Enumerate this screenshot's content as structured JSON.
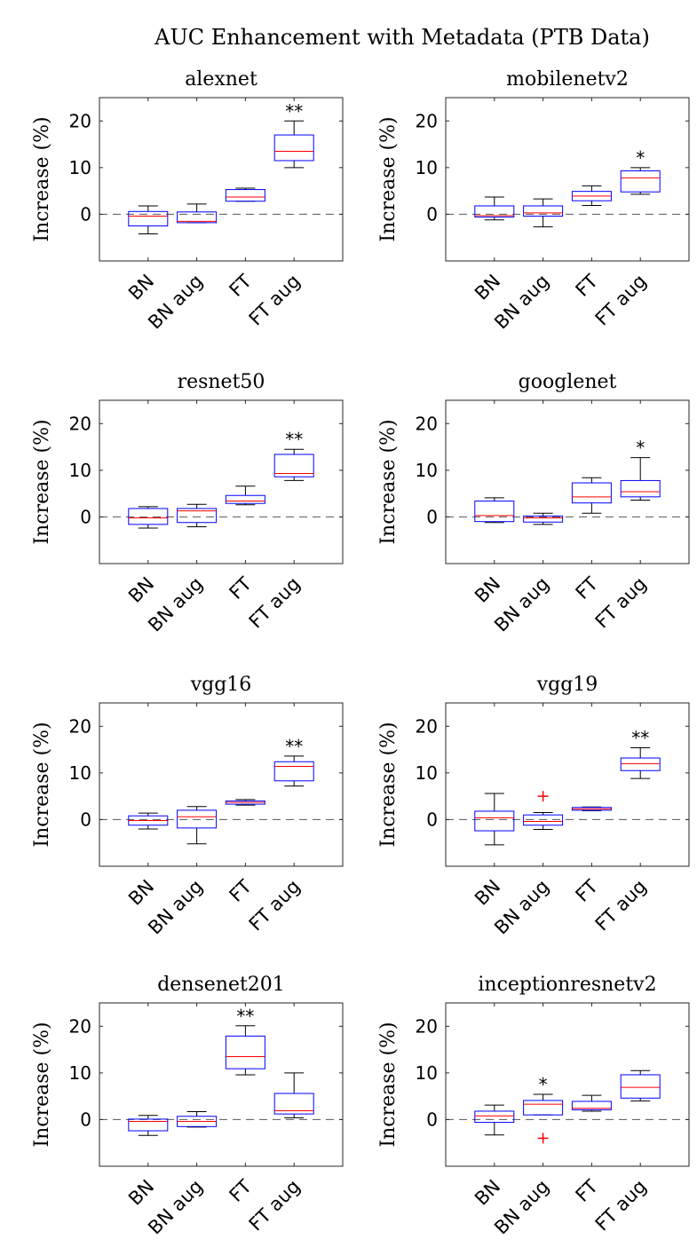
{
  "title": "AUC Enhancement with Metadata (PTB Data)",
  "colors": {
    "box": "#0000ff",
    "median": "#ff0000",
    "whisker": "#000000",
    "outlier": "#ff0000",
    "zero_line": "#555555"
  },
  "chart_data": [
    {
      "type": "box",
      "title": "alexnet",
      "ylabel": "Increase (%)",
      "ylim": [
        -10,
        25
      ],
      "yticks": [
        0,
        10,
        20
      ],
      "categories": [
        "BN",
        "BN aug",
        "FT",
        "FT aug"
      ],
      "boxes": [
        {
          "min": -4.2,
          "q1": -2.5,
          "median": -0.4,
          "q3": 0.6,
          "max": 1.8,
          "outliers": []
        },
        {
          "min": -1.8,
          "q1": -1.8,
          "median": -1.5,
          "q3": 0.5,
          "max": 2.2,
          "outliers": []
        },
        {
          "min": 2.8,
          "q1": 2.8,
          "median": 3.7,
          "q3": 5.3,
          "max": 5.6,
          "outliers": []
        },
        {
          "min": 10.0,
          "q1": 11.5,
          "median": 13.5,
          "q3": 17.0,
          "max": 20.0,
          "outliers": []
        }
      ],
      "significance": [
        "",
        "",
        "",
        "**"
      ]
    },
    {
      "type": "box",
      "title": "mobilenetv2",
      "ylabel": "Increase (%)",
      "ylim": [
        -10,
        25
      ],
      "yticks": [
        0,
        10,
        20
      ],
      "categories": [
        "BN",
        "BN aug",
        "FT",
        "FT aug"
      ],
      "boxes": [
        {
          "min": -1.2,
          "q1": -0.6,
          "median": -0.3,
          "q3": 1.8,
          "max": 3.7,
          "outliers": []
        },
        {
          "min": -2.7,
          "q1": -0.4,
          "median": 0.3,
          "q3": 1.8,
          "max": 3.3,
          "outliers": []
        },
        {
          "min": 1.9,
          "q1": 2.9,
          "median": 3.9,
          "q3": 4.9,
          "max": 6.1,
          "outliers": []
        },
        {
          "min": 4.3,
          "q1": 4.8,
          "median": 7.8,
          "q3": 9.3,
          "max": 10.0,
          "outliers": []
        }
      ],
      "significance": [
        "",
        "",
        "",
        "*"
      ]
    },
    {
      "type": "box",
      "title": "resnet50",
      "ylabel": "Increase (%)",
      "ylim": [
        -10,
        25
      ],
      "yticks": [
        0,
        10,
        20
      ],
      "categories": [
        "BN",
        "BN aug",
        "FT",
        "FT aug"
      ],
      "boxes": [
        {
          "min": -2.4,
          "q1": -1.6,
          "median": -0.2,
          "q3": 1.8,
          "max": 2.2,
          "outliers": []
        },
        {
          "min": -2.1,
          "q1": -1.2,
          "median": 1.3,
          "q3": 1.8,
          "max": 2.7,
          "outliers": []
        },
        {
          "min": 2.6,
          "q1": 2.9,
          "median": 3.4,
          "q3": 4.6,
          "max": 6.6,
          "outliers": []
        },
        {
          "min": 7.8,
          "q1": 8.6,
          "median": 9.3,
          "q3": 13.4,
          "max": 14.5,
          "outliers": []
        }
      ],
      "significance": [
        "",
        "",
        "",
        "**"
      ]
    },
    {
      "type": "box",
      "title": "googlenet",
      "ylabel": "Increase (%)",
      "ylim": [
        -10,
        25
      ],
      "yticks": [
        0,
        10,
        20
      ],
      "categories": [
        "BN",
        "BN aug",
        "FT",
        "FT aug"
      ],
      "boxes": [
        {
          "min": -1.2,
          "q1": -1.0,
          "median": 0.3,
          "q3": 3.4,
          "max": 4.1,
          "outliers": []
        },
        {
          "min": -1.6,
          "q1": -1.1,
          "median": -0.2,
          "q3": 0.2,
          "max": 0.8,
          "outliers": []
        },
        {
          "min": 0.8,
          "q1": 3.0,
          "median": 4.3,
          "q3": 7.3,
          "max": 8.4,
          "outliers": []
        },
        {
          "min": 3.6,
          "q1": 4.3,
          "median": 5.4,
          "q3": 7.8,
          "max": 12.7,
          "outliers": []
        }
      ],
      "significance": [
        "",
        "",
        "",
        "*"
      ]
    },
    {
      "type": "box",
      "title": "vgg16",
      "ylabel": "Increase (%)",
      "ylim": [
        -10,
        25
      ],
      "yticks": [
        0,
        10,
        20
      ],
      "categories": [
        "BN",
        "BN aug",
        "FT",
        "FT aug"
      ],
      "boxes": [
        {
          "min": -2.0,
          "q1": -1.2,
          "median": -0.2,
          "q3": 0.8,
          "max": 1.4,
          "outliers": []
        },
        {
          "min": -5.2,
          "q1": -1.8,
          "median": 0.6,
          "q3": 2.0,
          "max": 2.8,
          "outliers": []
        },
        {
          "min": 3.1,
          "q1": 3.3,
          "median": 3.7,
          "q3": 4.0,
          "max": 4.3,
          "outliers": []
        },
        {
          "min": 7.2,
          "q1": 8.3,
          "median": 11.4,
          "q3": 12.4,
          "max": 13.6,
          "outliers": []
        }
      ],
      "significance": [
        "",
        "",
        "",
        "**"
      ]
    },
    {
      "type": "box",
      "title": "vgg19",
      "ylabel": "Increase (%)",
      "ylim": [
        -10,
        25
      ],
      "yticks": [
        0,
        10,
        20
      ],
      "categories": [
        "BN",
        "BN aug",
        "FT",
        "FT aug"
      ],
      "boxes": [
        {
          "min": -5.4,
          "q1": -2.4,
          "median": 0.4,
          "q3": 1.8,
          "max": 5.6,
          "outliers": []
        },
        {
          "min": -2.1,
          "q1": -1.2,
          "median": -0.4,
          "q3": 1.0,
          "max": 1.5,
          "outliers": [
            5.0
          ]
        },
        {
          "min": 1.9,
          "q1": 2.0,
          "median": 2.3,
          "q3": 2.6,
          "max": 2.7,
          "outliers": []
        },
        {
          "min": 8.8,
          "q1": 10.5,
          "median": 12.0,
          "q3": 13.2,
          "max": 15.4,
          "outliers": []
        }
      ],
      "significance": [
        "",
        "",
        "",
        "**"
      ]
    },
    {
      "type": "box",
      "title": "densenet201",
      "ylabel": "Increase (%)",
      "ylim": [
        -10,
        25
      ],
      "yticks": [
        0,
        10,
        20
      ],
      "categories": [
        "BN",
        "BN aug",
        "FT",
        "FT aug"
      ],
      "boxes": [
        {
          "min": -3.4,
          "q1": -2.4,
          "median": -0.4,
          "q3": 0.1,
          "max": 0.9,
          "outliers": []
        },
        {
          "min": -1.6,
          "q1": -1.5,
          "median": -0.4,
          "q3": 0.7,
          "max": 1.7,
          "outliers": []
        },
        {
          "min": 9.6,
          "q1": 10.9,
          "median": 13.5,
          "q3": 17.9,
          "max": 20.1,
          "outliers": []
        },
        {
          "min": 0.4,
          "q1": 1.2,
          "median": 1.9,
          "q3": 5.6,
          "max": 10.0,
          "outliers": []
        }
      ],
      "significance": [
        "",
        "",
        "**",
        ""
      ]
    },
    {
      "type": "box",
      "title": "inceptionresnetv2",
      "ylabel": "Increase (%)",
      "ylim": [
        -10,
        25
      ],
      "yticks": [
        0,
        10,
        20
      ],
      "categories": [
        "BN",
        "BN aug",
        "FT",
        "FT aug"
      ],
      "boxes": [
        {
          "min": -3.3,
          "q1": -0.6,
          "median": 0.8,
          "q3": 1.8,
          "max": 3.1,
          "outliers": []
        },
        {
          "min": 1.0,
          "q1": 1.0,
          "median": 3.3,
          "q3": 4.1,
          "max": 5.4,
          "outliers": [
            -4.0
          ]
        },
        {
          "min": 1.8,
          "q1": 2.1,
          "median": 2.4,
          "q3": 3.9,
          "max": 5.2,
          "outliers": []
        },
        {
          "min": 4.0,
          "q1": 4.6,
          "median": 6.9,
          "q3": 9.6,
          "max": 10.5,
          "outliers": []
        }
      ],
      "significance": [
        "",
        "*",
        "",
        ""
      ]
    }
  ]
}
